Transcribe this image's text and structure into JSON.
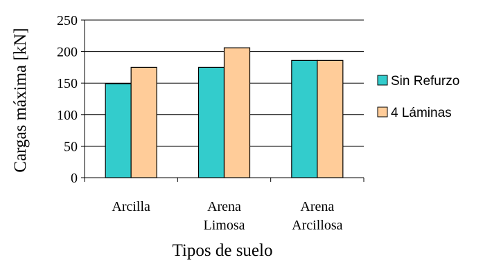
{
  "chart_data": {
    "type": "bar",
    "title": "",
    "xlabel": "Tipos de suelo",
    "ylabel": "Cargas máxima [kN]",
    "ylim": [
      0,
      250
    ],
    "yticks": [
      0,
      50,
      100,
      150,
      200,
      250
    ],
    "grid": true,
    "legend_position": "right",
    "categories": [
      [
        "Arcilla"
      ],
      [
        "Arena",
        "Limosa"
      ],
      [
        "Arena",
        "Arcillosa"
      ]
    ],
    "series": [
      {
        "name": "Sin Refurzo",
        "color": "#33CCCC",
        "values": [
          149,
          175,
          186
        ]
      },
      {
        "name": "4 Láminas",
        "color": "#FFCC99",
        "values": [
          175,
          206,
          186
        ]
      }
    ]
  }
}
